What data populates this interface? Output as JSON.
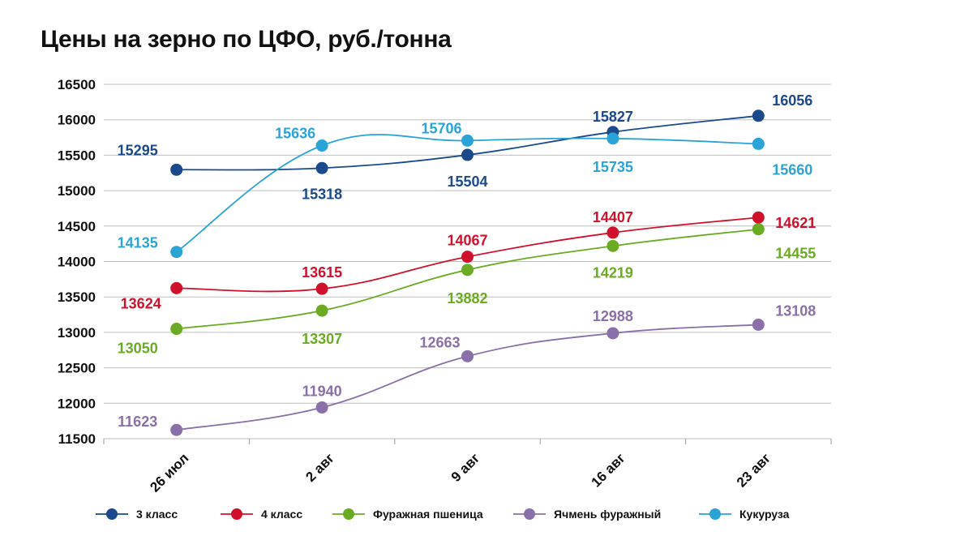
{
  "chart_data": {
    "type": "line",
    "title": "Цены на зерно по ЦФО, руб./тонна",
    "xlabel": "",
    "ylabel": "",
    "categories": [
      "26 июл",
      "2 авг",
      "9 авг",
      "16 авг",
      "23 авг"
    ],
    "ylim": [
      11500,
      16500
    ],
    "yticks": [
      16500,
      16000,
      15500,
      15000,
      14500,
      14000,
      13500,
      13000,
      12500,
      12000,
      11500
    ],
    "grid": true,
    "legend": "bottom",
    "series": [
      {
        "name": "3 класс",
        "color": "#1a4a8c",
        "values": [
          15295,
          15318,
          15504,
          15827,
          16056
        ],
        "labels": [
          "15295",
          "15318",
          "15504",
          "15827",
          "16056"
        ]
      },
      {
        "name": "4 класс",
        "color": "#d0112b",
        "values": [
          13624,
          13615,
          14067,
          14407,
          14621
        ],
        "labels": [
          "13624",
          "13615",
          "14067",
          "14407",
          "14621"
        ]
      },
      {
        "name": "Фуражная пшеница",
        "color": "#6aab23",
        "values": [
          13050,
          13307,
          13882,
          14219,
          14455
        ],
        "labels": [
          "13050",
          "13307",
          "13882",
          "14219",
          "14455"
        ]
      },
      {
        "name": "Ячмень фуражный",
        "color": "#8a70a8",
        "values": [
          11623,
          11940,
          12663,
          12988,
          13108
        ],
        "labels": [
          "11623",
          "11940",
          "12663",
          "12988",
          "13108"
        ]
      },
      {
        "name": "Кукуруза",
        "color": "#2aa3d6",
        "values": [
          14135,
          15636,
          15706,
          15735,
          15660
        ],
        "labels": [
          "14135",
          "15636",
          "15706",
          "15735",
          "15660"
        ]
      }
    ]
  }
}
